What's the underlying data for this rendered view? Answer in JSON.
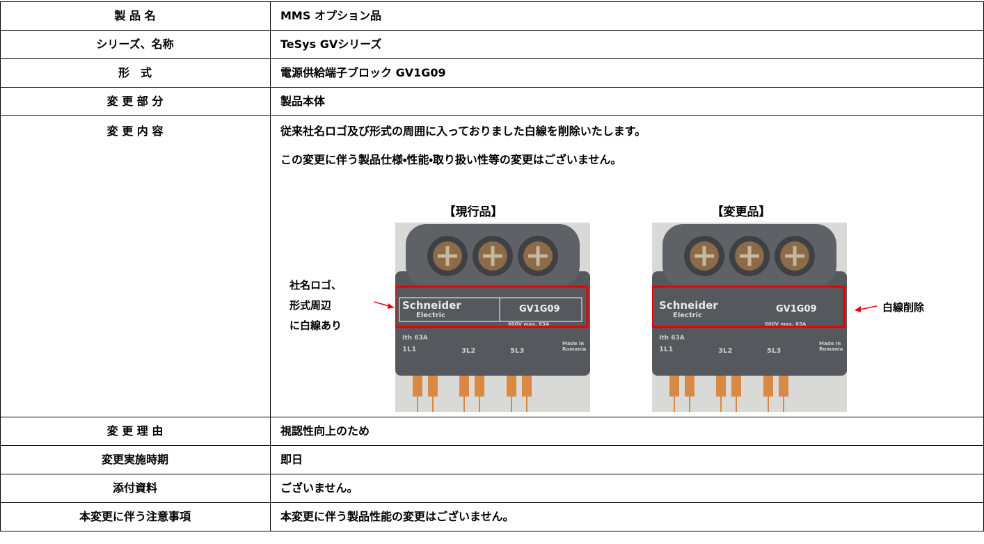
{
  "table": {
    "rows": [
      {
        "label": "製 品 名",
        "value": "MMS オプション品"
      },
      {
        "label": "シリーズ、名称",
        "value": "TeSys GVシリーズ"
      },
      {
        "label": "形　式",
        "value": "電源供給端子ブロック GV1G09"
      },
      {
        "label": "変 更 部 分",
        "value": "製品本体"
      },
      {
        "label": "変 更 内 容",
        "lines": [
          "従来社名ロゴ及び形式の周囲に入っておりました白線を削除いたします。",
          "この変更に伴う製品仕様・性能・取り扱い性等の変更はございません。"
        ],
        "figures": [
          {
            "caption": "【現行品】",
            "note": [
              "社名ロゴ、",
              "形式周辺",
              "に白線あり"
            ],
            "photo_text": [
              "Schneider",
              "Electric",
              "GV1G09",
              "600V max. 63A",
              "Ith 63A",
              "1L1",
              "3L2",
              "5L3",
              "Made in",
              "Romania"
            ]
          },
          {
            "caption": "【変更品】",
            "note": [
              "白線削除"
            ],
            "photo_text": [
              "Schneider",
              "Electric",
              "GV1G09",
              "600V max. 63A",
              "Ith 63A",
              "1L1",
              "3L2",
              "5L3",
              "Made in",
              "Romania"
            ]
          }
        ]
      },
      {
        "label": "変 更 理 由",
        "value": "視認性向上のため"
      },
      {
        "label": "変更実施時期",
        "value": "即日"
      },
      {
        "label": "添付資料",
        "value": "ございません。"
      },
      {
        "label": "本変更に伴う注意事項",
        "value": "本変更に伴う製品性能の変更はございません。"
      }
    ]
  }
}
